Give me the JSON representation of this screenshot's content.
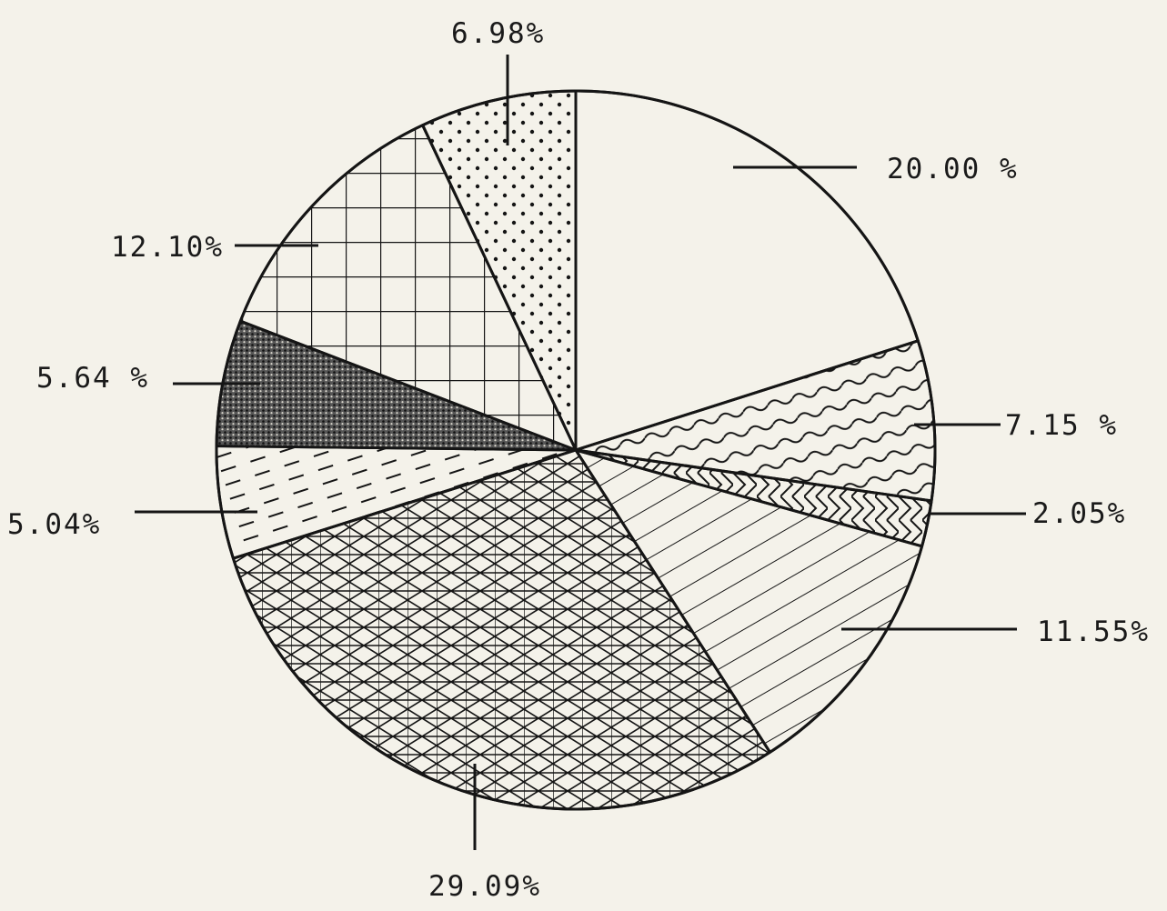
{
  "chart_data": {
    "type": "pie",
    "title": "",
    "start_angle_deg": 0,
    "direction": "clockwise",
    "slices": [
      {
        "label": "20.00 %",
        "value": 20.0,
        "pattern": "blank"
      },
      {
        "label": "7.15 %",
        "value": 7.15,
        "pattern": "waves"
      },
      {
        "label": "2.05%",
        "value": 2.05,
        "pattern": "chevrons"
      },
      {
        "label": "11.55%",
        "value": 11.55,
        "pattern": "diagonal-lines"
      },
      {
        "label": "29.09%",
        "value": 29.09,
        "pattern": "crosshatch-diamond"
      },
      {
        "label": "5.04%",
        "value": 5.04,
        "pattern": "dashes"
      },
      {
        "label": "5.64 %",
        "value": 5.64,
        "pattern": "stipple-dense"
      },
      {
        "label": "12.10%",
        "value": 12.1,
        "pattern": "grid"
      },
      {
        "label": "6.98%",
        "value": 6.98,
        "pattern": "dots"
      }
    ],
    "colors": {
      "ink": "#151515",
      "paper": "#f4f2ea"
    }
  }
}
